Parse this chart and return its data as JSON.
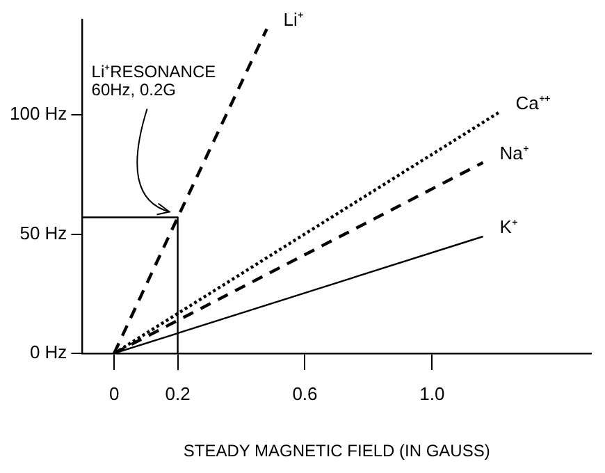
{
  "chart_data": {
    "type": "line",
    "xlabel": "STEADY MAGNETIC FIELD (IN GAUSS)",
    "xlim": [
      -0.1,
      1.5
    ],
    "xticks": [
      0,
      0.2,
      0.6,
      {
        "value": 1,
        "label": "1.0"
      }
    ],
    "ylim": [
      0,
      140
    ],
    "yticks": [
      {
        "value": 0,
        "label": "0 Hz"
      },
      {
        "value": 50,
        "label": "50 Hz"
      },
      {
        "value": 100,
        "label": "100 Hz"
      }
    ],
    "grid": false,
    "marker": "none",
    "series": [
      {
        "name": "Li⁺",
        "color": "#000000",
        "line_style": "dashed",
        "x": [
          0,
          0.2,
          0.48
        ],
        "values": [
          0,
          57,
          136
        ]
      },
      {
        "name": "Ca⁺⁺",
        "color": "#000000",
        "line_style": "dotted",
        "x": [
          0,
          1.21
        ],
        "values": [
          0,
          101
        ]
      },
      {
        "name": "Na⁺",
        "color": "#000000",
        "line_style": "dashed",
        "x": [
          0,
          1.16
        ],
        "values": [
          0,
          80
        ]
      },
      {
        "name": "K⁺",
        "color": "#000000",
        "line_style": "solid",
        "x": [
          0,
          1.16
        ],
        "values": [
          0,
          49
        ]
      },
      {
        "color": "#000000",
        "line_style": "solid",
        "x": [
          -0.1,
          0.2,
          0.2
        ],
        "values": [
          57,
          57,
          0
        ]
      }
    ],
    "annotations": [
      {
        "text": "Li⁺RESONANCE\n60Hz, 0.2G",
        "x": 0.2,
        "y": 57
      }
    ]
  }
}
